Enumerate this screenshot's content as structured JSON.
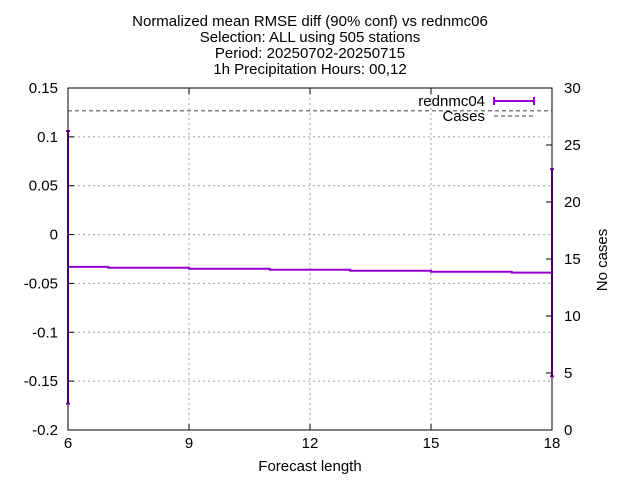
{
  "chart_data": {
    "type": "line",
    "title_lines": [
      "Normalized mean RMSE diff (90% conf) vs rednmc06",
      "Selection: ALL using   505 stations",
      "Period: 20250702-20250715",
      "1h Precipitation   Hours: 00,12"
    ],
    "xlabel": "Forecast length",
    "ylabel": "",
    "y2label": "No cases",
    "xlim": [
      6,
      18
    ],
    "ylim": [
      -0.2,
      0.15
    ],
    "y2lim": [
      0,
      30
    ],
    "x_ticks": [
      "6",
      "9",
      "12",
      "15",
      "18"
    ],
    "y_ticks": [
      "0.15",
      "0.1",
      "0.05",
      "0",
      "-0.05",
      "-0.1",
      "-0.15",
      "-0.2"
    ],
    "y2_ticks": [
      "30",
      "25",
      "20",
      "15",
      "10",
      "5",
      "0"
    ],
    "grid": true,
    "legend_position": "top-right",
    "series": [
      {
        "name": "rednmc04",
        "color": "#9400d3",
        "axis": "y",
        "x": [
          6,
          7,
          8,
          9,
          10,
          11,
          12,
          13,
          14,
          15,
          16,
          17,
          18
        ],
        "y": [
          -0.033,
          -0.034,
          -0.034,
          -0.035,
          -0.035,
          -0.036,
          -0.036,
          -0.037,
          -0.037,
          -0.038,
          -0.038,
          -0.039,
          -0.039
        ],
        "error_bars": [
          {
            "x": 6,
            "low": -0.173,
            "high": 0.106
          },
          {
            "x": 18,
            "low": -0.145,
            "high": 0.067
          }
        ]
      },
      {
        "name": "Cases",
        "color": "#808080",
        "axis": "y2",
        "style": "dashed",
        "x": [
          6,
          18
        ],
        "y": [
          28,
          28
        ]
      }
    ]
  }
}
